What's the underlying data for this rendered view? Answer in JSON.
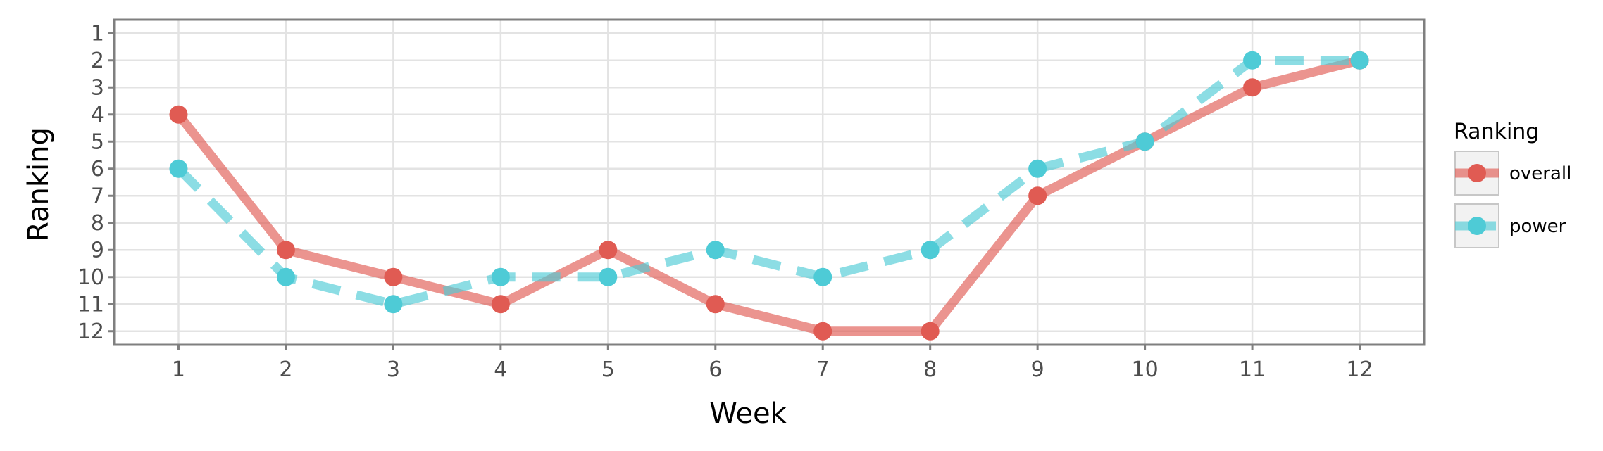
{
  "chart_data": {
    "type": "line",
    "xlabel": "Week",
    "ylabel": "Ranking",
    "x": [
      1,
      2,
      3,
      4,
      5,
      6,
      7,
      8,
      9,
      10,
      11,
      12
    ],
    "x_ticks": [
      "1",
      "2",
      "3",
      "4",
      "5",
      "6",
      "7",
      "8",
      "9",
      "10",
      "11",
      "12"
    ],
    "y_ticks": [
      "1",
      "2",
      "3",
      "4",
      "5",
      "6",
      "7",
      "8",
      "9",
      "10",
      "11",
      "12"
    ],
    "xlim": [
      0.4,
      12.6
    ],
    "ylim": [
      12.5,
      0.5
    ],
    "y_reversed": true,
    "grid": true,
    "legend": {
      "title": "Ranking",
      "position": "right"
    },
    "series": [
      {
        "name": "overall",
        "color": "#e05b53",
        "line_style": "solid",
        "values": [
          4,
          9,
          10,
          11,
          9,
          11,
          12,
          12,
          7,
          5,
          3,
          2
        ]
      },
      {
        "name": "power",
        "color": "#4ecbd6",
        "line_style": "dashed",
        "values": [
          6,
          10,
          11,
          10,
          10,
          9,
          10,
          9,
          6,
          5,
          2,
          2
        ]
      }
    ]
  }
}
